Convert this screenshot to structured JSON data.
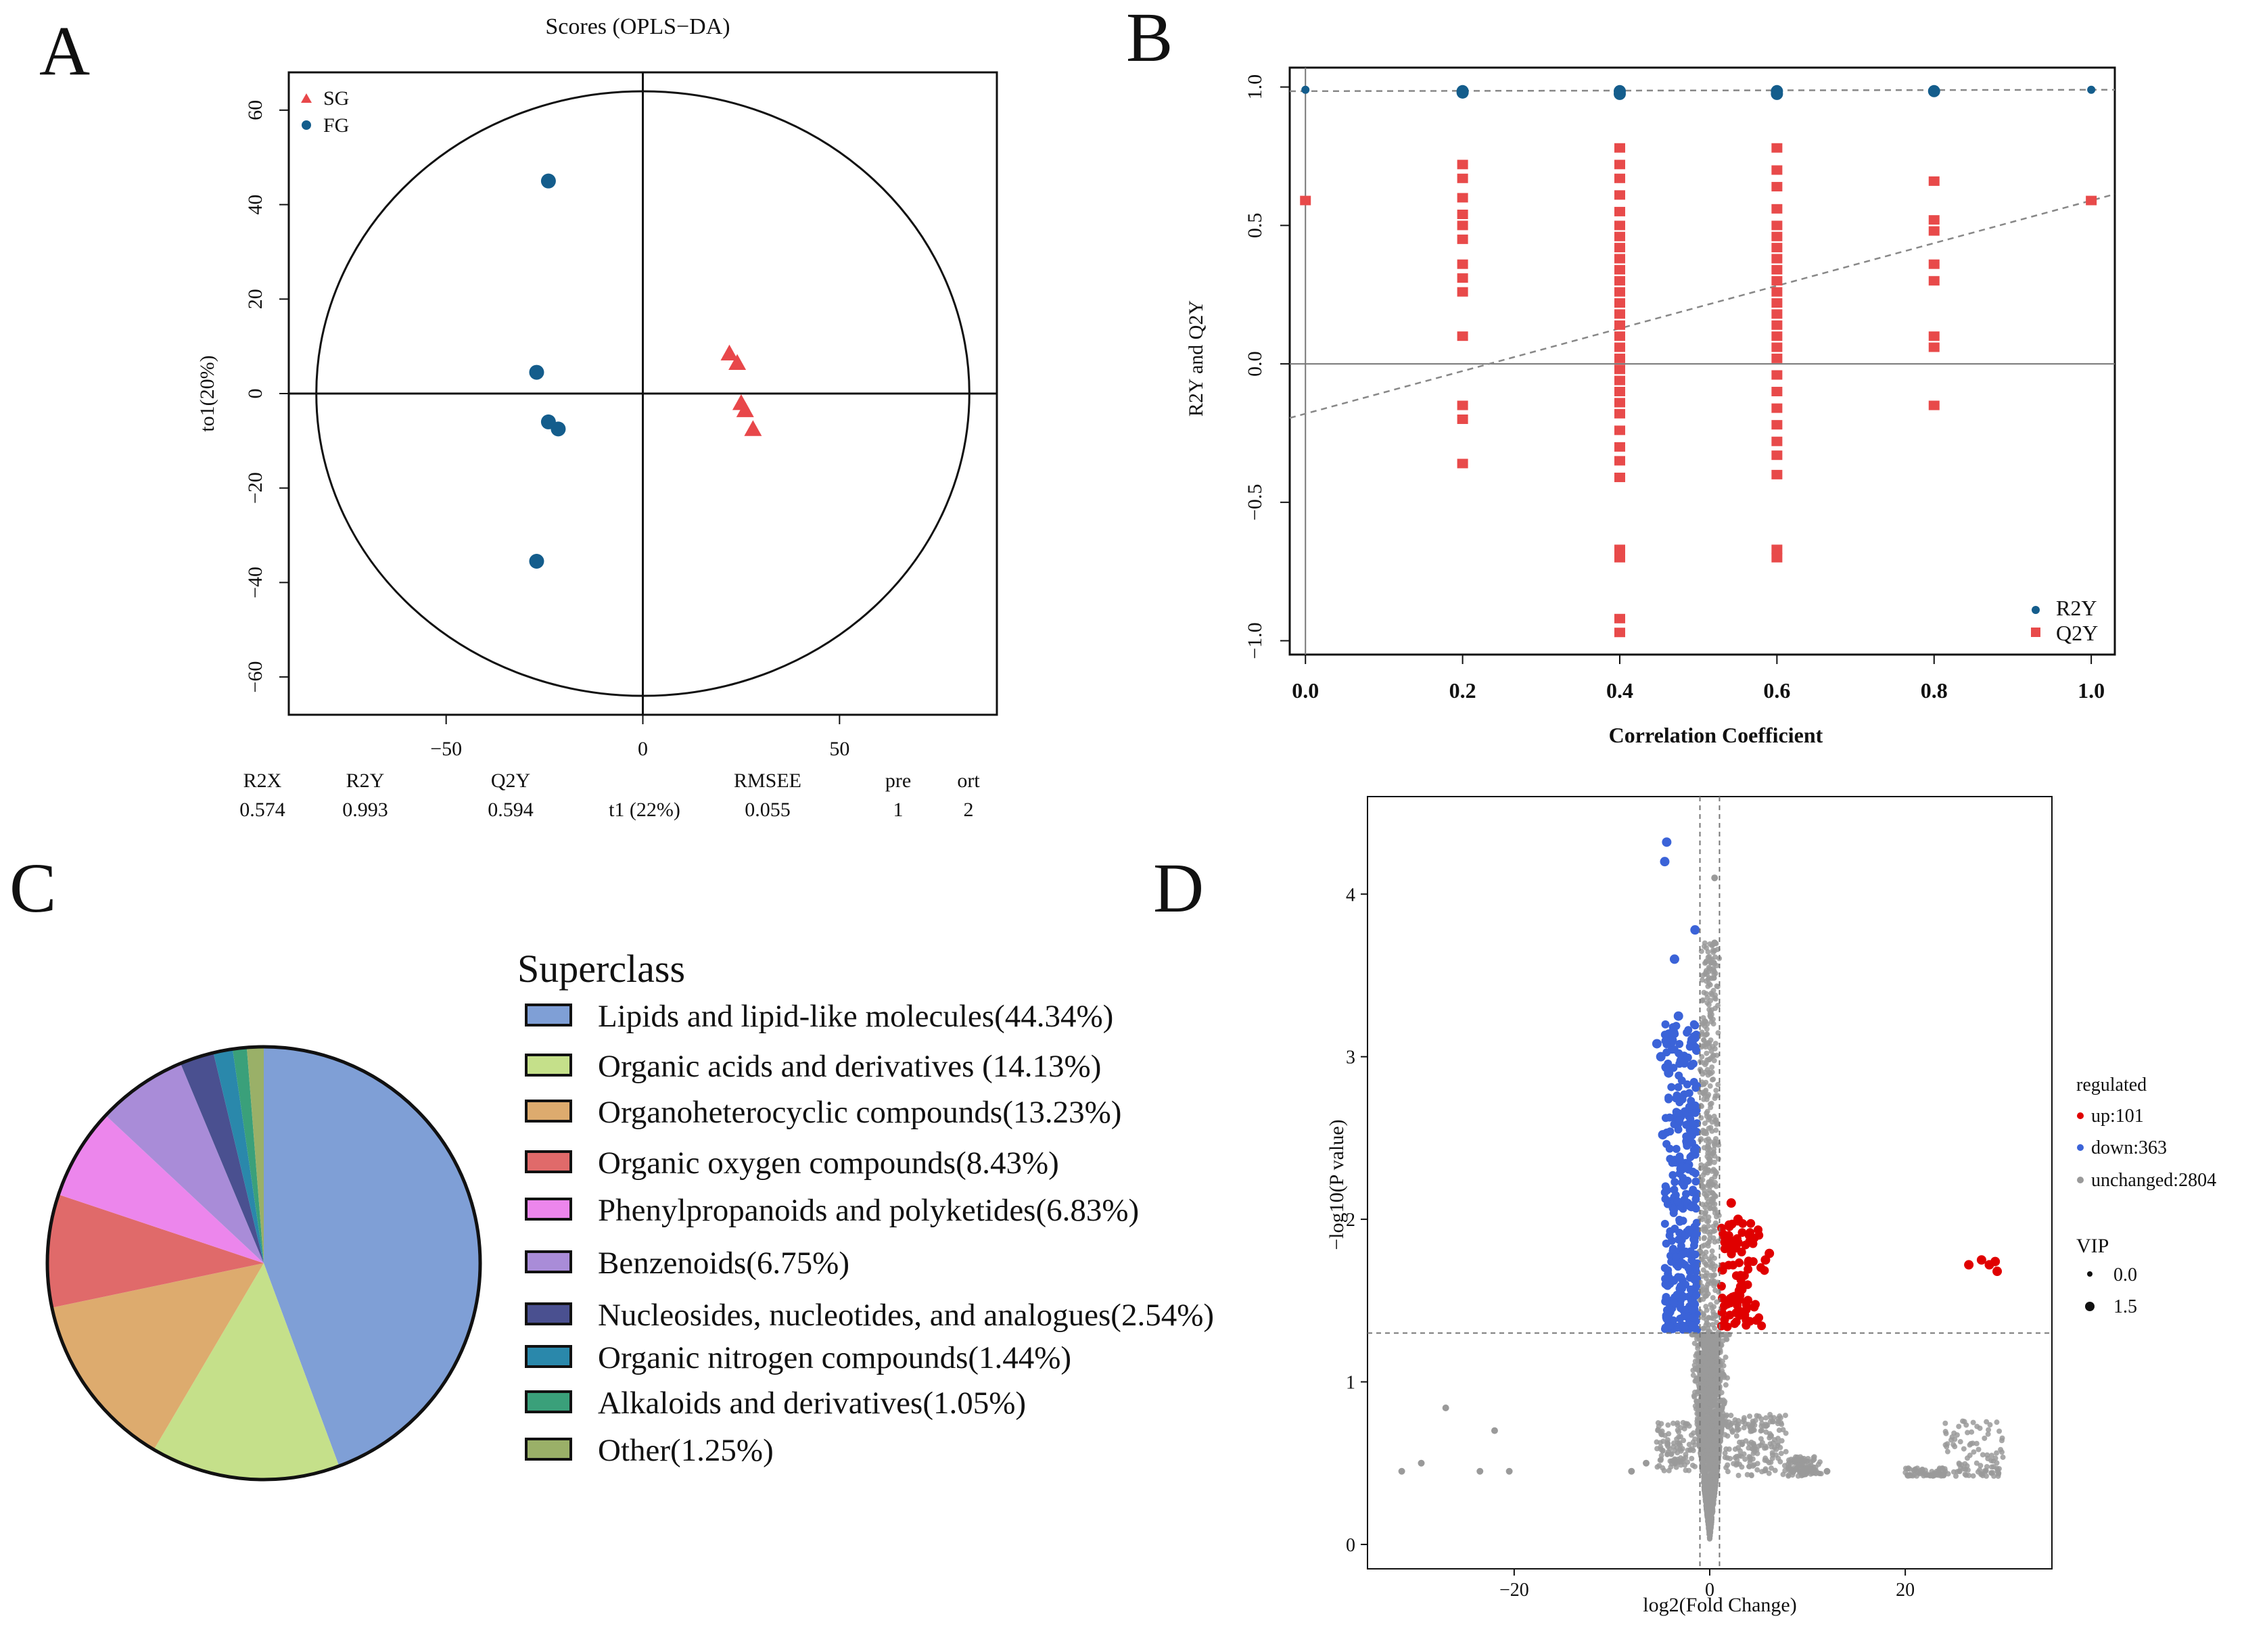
{
  "panels": {
    "a": "A",
    "b": "B",
    "c": "C",
    "d": "D"
  },
  "colors": {
    "sg": "#e8474a",
    "fg": "#145d8c",
    "q2y": "#e84a4a",
    "r2y": "#145d8c",
    "up": "#e00000",
    "down": "#3b63d8",
    "unchanged": "#9a9a9a"
  },
  "chart_data": [
    {
      "type": "scatter",
      "title": "Scores (OPLS−DA)",
      "xlabel": "t1 (22%)",
      "ylabel": "to1(20%)",
      "xlim": [
        -90,
        90
      ],
      "ylim": [
        -68,
        68
      ],
      "xticks": [
        -50,
        0,
        50
      ],
      "yticks": [
        -60,
        -40,
        -20,
        0,
        20,
        40,
        60
      ],
      "series": [
        {
          "name": "SG",
          "marker": "triangle",
          "points": [
            [
              22,
              8.5
            ],
            [
              24,
              6.5
            ],
            [
              25,
              -2
            ],
            [
              26,
              -3.5
            ],
            [
              28,
              -7.5
            ]
          ]
        },
        {
          "name": "FG",
          "marker": "circle",
          "points": [
            [
              -24,
              45
            ],
            [
              -27,
              4.5
            ],
            [
              -24,
              -6
            ],
            [
              -21.5,
              -7.5
            ],
            [
              -27,
              -35.5
            ]
          ]
        }
      ],
      "ellipse": {
        "cx": 0,
        "cy": 0,
        "rx": 83,
        "ry": 64
      },
      "stats": {
        "headers": [
          "R2X",
          "R2Y",
          "Q2Y",
          "RMSEE",
          "pre",
          "ort"
        ],
        "values": [
          "0.574",
          "0.993",
          "0.594",
          "0.055",
          "1",
          "2"
        ]
      }
    },
    {
      "type": "scatter",
      "title": "",
      "xlabel": "Correlation Coefficient",
      "ylabel": "R2Y and Q2Y",
      "xlim": [
        -0.02,
        1.03
      ],
      "ylim": [
        -1.05,
        1.07
      ],
      "xticks": [
        0.0,
        0.2,
        0.4,
        0.6,
        0.8,
        1.0
      ],
      "xtick_labels": [
        "0.0",
        "0.2",
        "0.4",
        "0.6",
        "0.8",
        "1.0"
      ],
      "yticks": [
        -1.0,
        -0.5,
        0.0,
        0.5,
        1.0
      ],
      "ytick_labels": [
        "−1.0",
        "−0.5",
        "0.0",
        "0.5",
        "1.0"
      ],
      "legend": [
        "R2Y",
        "Q2Y"
      ],
      "r2y_points": [
        [
          0.0,
          0.99
        ],
        [
          0.2,
          0.985
        ],
        [
          0.2,
          0.98
        ],
        [
          0.4,
          0.985
        ],
        [
          0.4,
          0.975
        ],
        [
          0.6,
          0.985
        ],
        [
          0.6,
          0.975
        ],
        [
          0.8,
          0.985
        ],
        [
          1.0,
          0.99
        ]
      ],
      "q2y_points": [
        [
          0.0,
          0.59
        ],
        [
          1.0,
          0.59
        ],
        [
          0.2,
          0.72
        ],
        [
          0.2,
          0.67
        ],
        [
          0.2,
          0.6
        ],
        [
          0.2,
          0.54
        ],
        [
          0.2,
          0.5
        ],
        [
          0.2,
          0.45
        ],
        [
          0.2,
          0.36
        ],
        [
          0.2,
          0.31
        ],
        [
          0.2,
          0.26
        ],
        [
          0.2,
          0.1
        ],
        [
          0.2,
          -0.15
        ],
        [
          0.2,
          -0.2
        ],
        [
          0.2,
          -0.36
        ],
        [
          0.4,
          0.78
        ],
        [
          0.4,
          0.72
        ],
        [
          0.4,
          0.67
        ],
        [
          0.4,
          0.61
        ],
        [
          0.4,
          0.55
        ],
        [
          0.4,
          0.5
        ],
        [
          0.4,
          0.46
        ],
        [
          0.4,
          0.42
        ],
        [
          0.4,
          0.38
        ],
        [
          0.4,
          0.34
        ],
        [
          0.4,
          0.3
        ],
        [
          0.4,
          0.26
        ],
        [
          0.4,
          0.22
        ],
        [
          0.4,
          0.18
        ],
        [
          0.4,
          0.14
        ],
        [
          0.4,
          0.1
        ],
        [
          0.4,
          0.06
        ],
        [
          0.4,
          0.02
        ],
        [
          0.4,
          -0.02
        ],
        [
          0.4,
          -0.06
        ],
        [
          0.4,
          -0.1
        ],
        [
          0.4,
          -0.14
        ],
        [
          0.4,
          -0.18
        ],
        [
          0.4,
          -0.24
        ],
        [
          0.4,
          -0.3
        ],
        [
          0.4,
          -0.35
        ],
        [
          0.4,
          -0.41
        ],
        [
          0.4,
          -0.67
        ],
        [
          0.4,
          -0.7
        ],
        [
          0.4,
          -0.92
        ],
        [
          0.4,
          -0.97
        ],
        [
          0.6,
          0.78
        ],
        [
          0.6,
          0.7
        ],
        [
          0.6,
          0.64
        ],
        [
          0.6,
          0.56
        ],
        [
          0.6,
          0.5
        ],
        [
          0.6,
          0.46
        ],
        [
          0.6,
          0.42
        ],
        [
          0.6,
          0.38
        ],
        [
          0.6,
          0.34
        ],
        [
          0.6,
          0.3
        ],
        [
          0.6,
          0.26
        ],
        [
          0.6,
          0.22
        ],
        [
          0.6,
          0.18
        ],
        [
          0.6,
          0.14
        ],
        [
          0.6,
          0.1
        ],
        [
          0.6,
          0.06
        ],
        [
          0.6,
          0.02
        ],
        [
          0.6,
          -0.04
        ],
        [
          0.6,
          -0.1
        ],
        [
          0.6,
          -0.16
        ],
        [
          0.6,
          -0.22
        ],
        [
          0.6,
          -0.28
        ],
        [
          0.6,
          -0.33
        ],
        [
          0.6,
          -0.4
        ],
        [
          0.6,
          -0.67
        ],
        [
          0.6,
          -0.7
        ],
        [
          0.8,
          0.66
        ],
        [
          0.8,
          0.52
        ],
        [
          0.8,
          0.48
        ],
        [
          0.8,
          0.36
        ],
        [
          0.8,
          0.3
        ],
        [
          0.8,
          0.1
        ],
        [
          0.8,
          0.06
        ],
        [
          0.8,
          -0.15
        ]
      ],
      "r2y_line": {
        "intercept": 0.985,
        "slope": 0.005
      },
      "q2y_line": {
        "intercept": -0.18,
        "slope": 0.77
      }
    },
    {
      "type": "pie",
      "legend_title": "Superclass",
      "slices": [
        {
          "label": "Lipids and lipid-like molecules(44.34%)",
          "value": 44.34,
          "color": "#7f9fd6",
          "text_color": "#2f5aa0"
        },
        {
          "label": "Organic acids and derivatives (14.13%)",
          "value": 14.13,
          "color": "#c5e08a",
          "text_color": "#4a9a2a"
        },
        {
          "label": "Organoheterocyclic compounds(13.23%)",
          "value": 13.23,
          "color": "#ddab6e",
          "text_color": "#9a6a20"
        },
        {
          "label": "Organic oxygen compounds(8.43%)",
          "value": 8.43,
          "color": "#e06a6a",
          "text_color": "#a02020"
        },
        {
          "label": "Phenylpropanoids and polyketides(6.83%)",
          "value": 6.83,
          "color": "#ec86ec",
          "text_color": "#a020a0"
        },
        {
          "label": "Benzenoids(6.75%)",
          "value": 6.75,
          "color": "#a98cd8",
          "text_color": "#5a3aa0"
        },
        {
          "label": "Nucleosides, nucleotides, and analogues(2.54%)",
          "value": 2.54,
          "color": "#4a5090",
          "text_color": "#20246a"
        },
        {
          "label": "Organic nitrogen compounds(1.44%)",
          "value": 1.44,
          "color": "#2a88ab",
          "text_color": "#1a5f80"
        },
        {
          "label": "Alkaloids and derivatives(1.05%)",
          "value": 1.05,
          "color": "#3aa07a",
          "text_color": "#1a7a50"
        },
        {
          "label": "Other(1.25%)",
          "value": 1.25,
          "color": "#9ab068",
          "text_color": "#4a7a1a"
        }
      ]
    },
    {
      "type": "scatter",
      "title": "",
      "xlabel": "log2(Fold Change)",
      "ylabel": "−log10(P value)",
      "xlim": [
        -35,
        35
      ],
      "ylim": [
        -0.15,
        4.6
      ],
      "xticks": [
        -20,
        0,
        20
      ],
      "xtick_labels": [
        "−20",
        "0",
        "20"
      ],
      "yticks": [
        0,
        1,
        2,
        3,
        4
      ],
      "ytick_labels": [
        "0",
        "1",
        "2",
        "3",
        "4"
      ],
      "thresholds": {
        "x": [
          -1,
          1
        ],
        "y": 1.3
      },
      "legend_title": "regulated",
      "legend": [
        "up:101",
        "down:363",
        "unchanged:2804"
      ],
      "vip_title": "VIP",
      "vip_labels": [
        "0.0",
        "1.5"
      ],
      "counts": {
        "up": 101,
        "down": 363,
        "unchanged": 2804
      },
      "down_highlights": [
        [
          -4.4,
          4.32
        ],
        [
          -4.6,
          4.2
        ],
        [
          -1.5,
          3.78
        ],
        [
          -3.6,
          3.6
        ],
        [
          -3.2,
          3.25
        ],
        [
          -5.4,
          3.08
        ],
        [
          -5.0,
          3.0
        ],
        [
          -4.2,
          2.9
        ],
        [
          -4.8,
          2.52
        ]
      ],
      "up_highlights": [
        [
          26.5,
          1.72
        ],
        [
          27.8,
          1.75
        ],
        [
          28.6,
          1.72
        ],
        [
          29.4,
          1.68
        ],
        [
          29.2,
          1.74
        ],
        [
          6.1,
          1.79
        ],
        [
          5.7,
          1.75
        ],
        [
          2.9,
          2.0
        ],
        [
          2.2,
          2.1
        ]
      ],
      "unchanged_highlights": [
        [
          -27,
          0.84
        ],
        [
          -22,
          0.7
        ],
        [
          -31.5,
          0.45
        ],
        [
          -29.5,
          0.5
        ],
        [
          -23.5,
          0.45
        ],
        [
          -20.5,
          0.45
        ],
        [
          -8,
          0.45
        ],
        [
          -6.5,
          0.5
        ],
        [
          0.5,
          4.1
        ],
        [
          0.5,
          3.7
        ],
        [
          -1,
          1.8
        ],
        [
          10,
          0.45
        ],
        [
          12,
          0.45
        ]
      ]
    }
  ]
}
